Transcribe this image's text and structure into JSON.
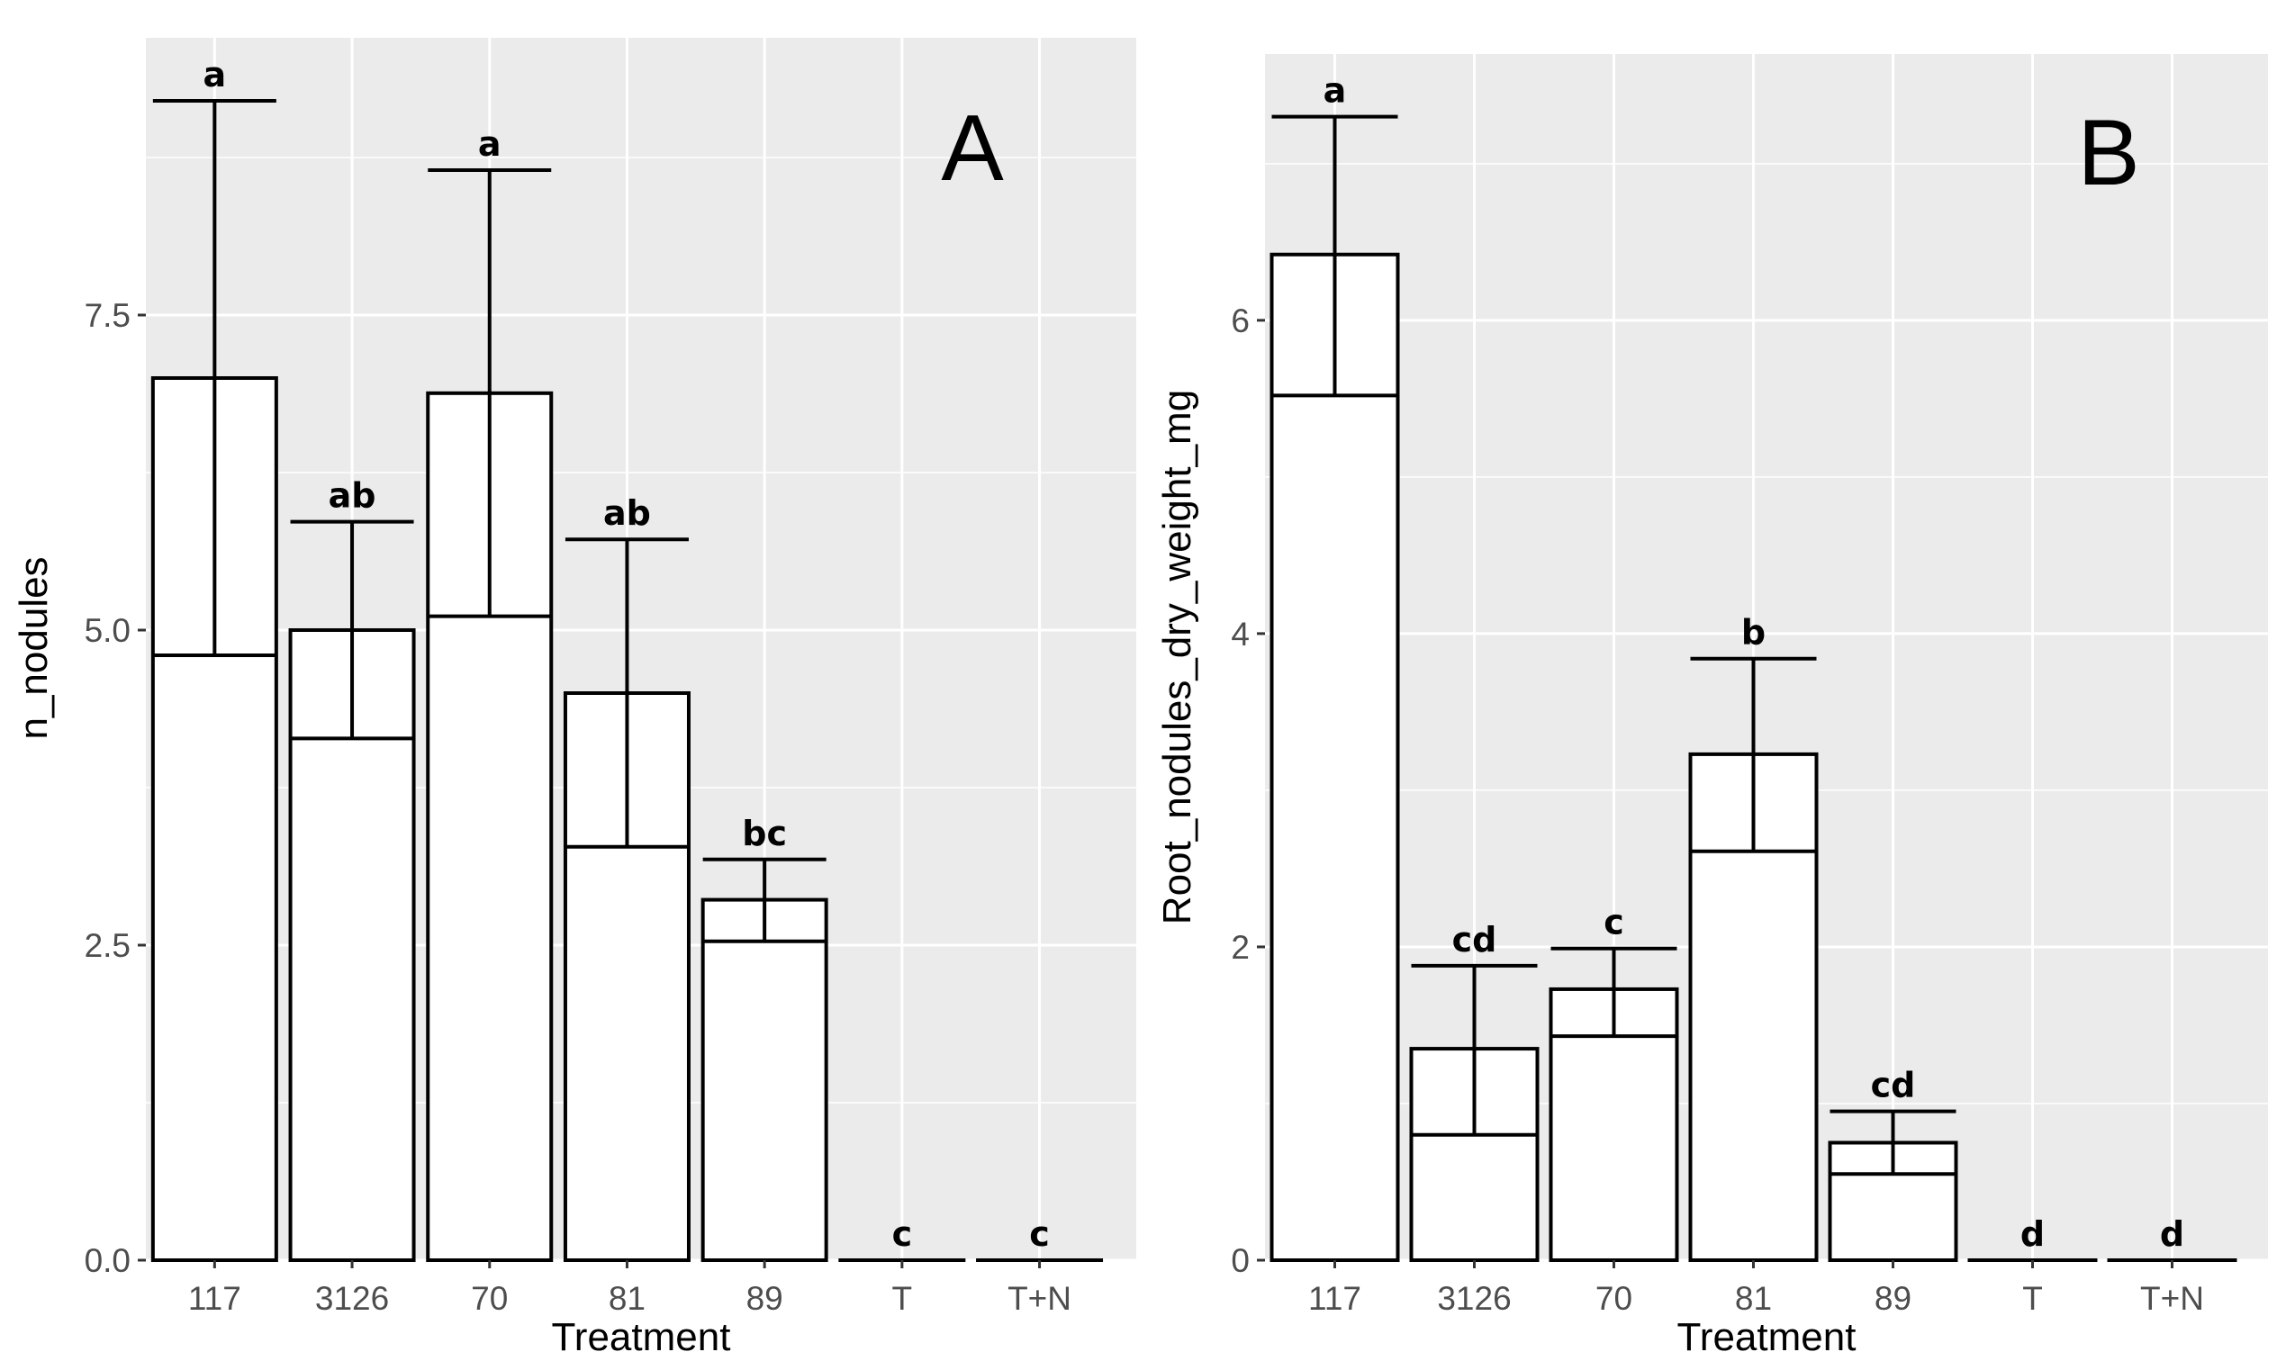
{
  "chart_data": [
    {
      "type": "bar",
      "panel_label": "A",
      "categories": [
        "117",
        "3126",
        "70",
        "81",
        "89",
        "T",
        "T+N"
      ],
      "values": [
        7.0,
        5.0,
        6.88,
        4.5,
        2.86,
        0.0,
        0.0
      ],
      "error_upper": [
        9.2,
        5.86,
        8.65,
        5.72,
        3.18,
        0.0,
        0.0
      ],
      "error_lower": [
        4.8,
        4.14,
        5.11,
        3.28,
        2.53,
        0.0,
        0.0
      ],
      "significance": [
        "a",
        "ab",
        "a",
        "ab",
        "bc",
        "c",
        "c"
      ],
      "xlabel": "Treatment",
      "ylabel": "n_nodules",
      "ylim": [
        0,
        9.7
      ],
      "yticks": [
        0.0,
        2.5,
        5.0,
        7.5
      ],
      "ytick_labels": [
        "0.0",
        "2.5",
        "5.0",
        "7.5"
      ],
      "grid": true
    },
    {
      "type": "bar",
      "panel_label": "B",
      "categories": [
        "117",
        "3126",
        "70",
        "81",
        "89",
        "T",
        "T+N"
      ],
      "values": [
        6.42,
        1.35,
        1.73,
        3.23,
        0.75,
        0.0,
        0.0
      ],
      "error_upper": [
        7.3,
        1.88,
        1.99,
        3.84,
        0.95,
        0.0,
        0.0
      ],
      "error_lower": [
        5.52,
        0.8,
        1.43,
        2.61,
        0.55,
        0.0,
        0.0
      ],
      "significance": [
        "a",
        "cd",
        "c",
        "b",
        "cd",
        "d",
        "d"
      ],
      "xlabel": "Treatment",
      "ylabel": "Root_nodules_dry_weight_mg",
      "ylim": [
        0,
        7.7
      ],
      "yticks": [
        0,
        2,
        4,
        6
      ],
      "ytick_labels": [
        "0",
        "2",
        "4",
        "6"
      ],
      "grid": true
    }
  ],
  "colors": {
    "panel_background": "#ebebeb",
    "grid": "#ffffff",
    "bar_fill": "#ffffff",
    "bar_outline": "#000000",
    "tick": "#333333"
  }
}
